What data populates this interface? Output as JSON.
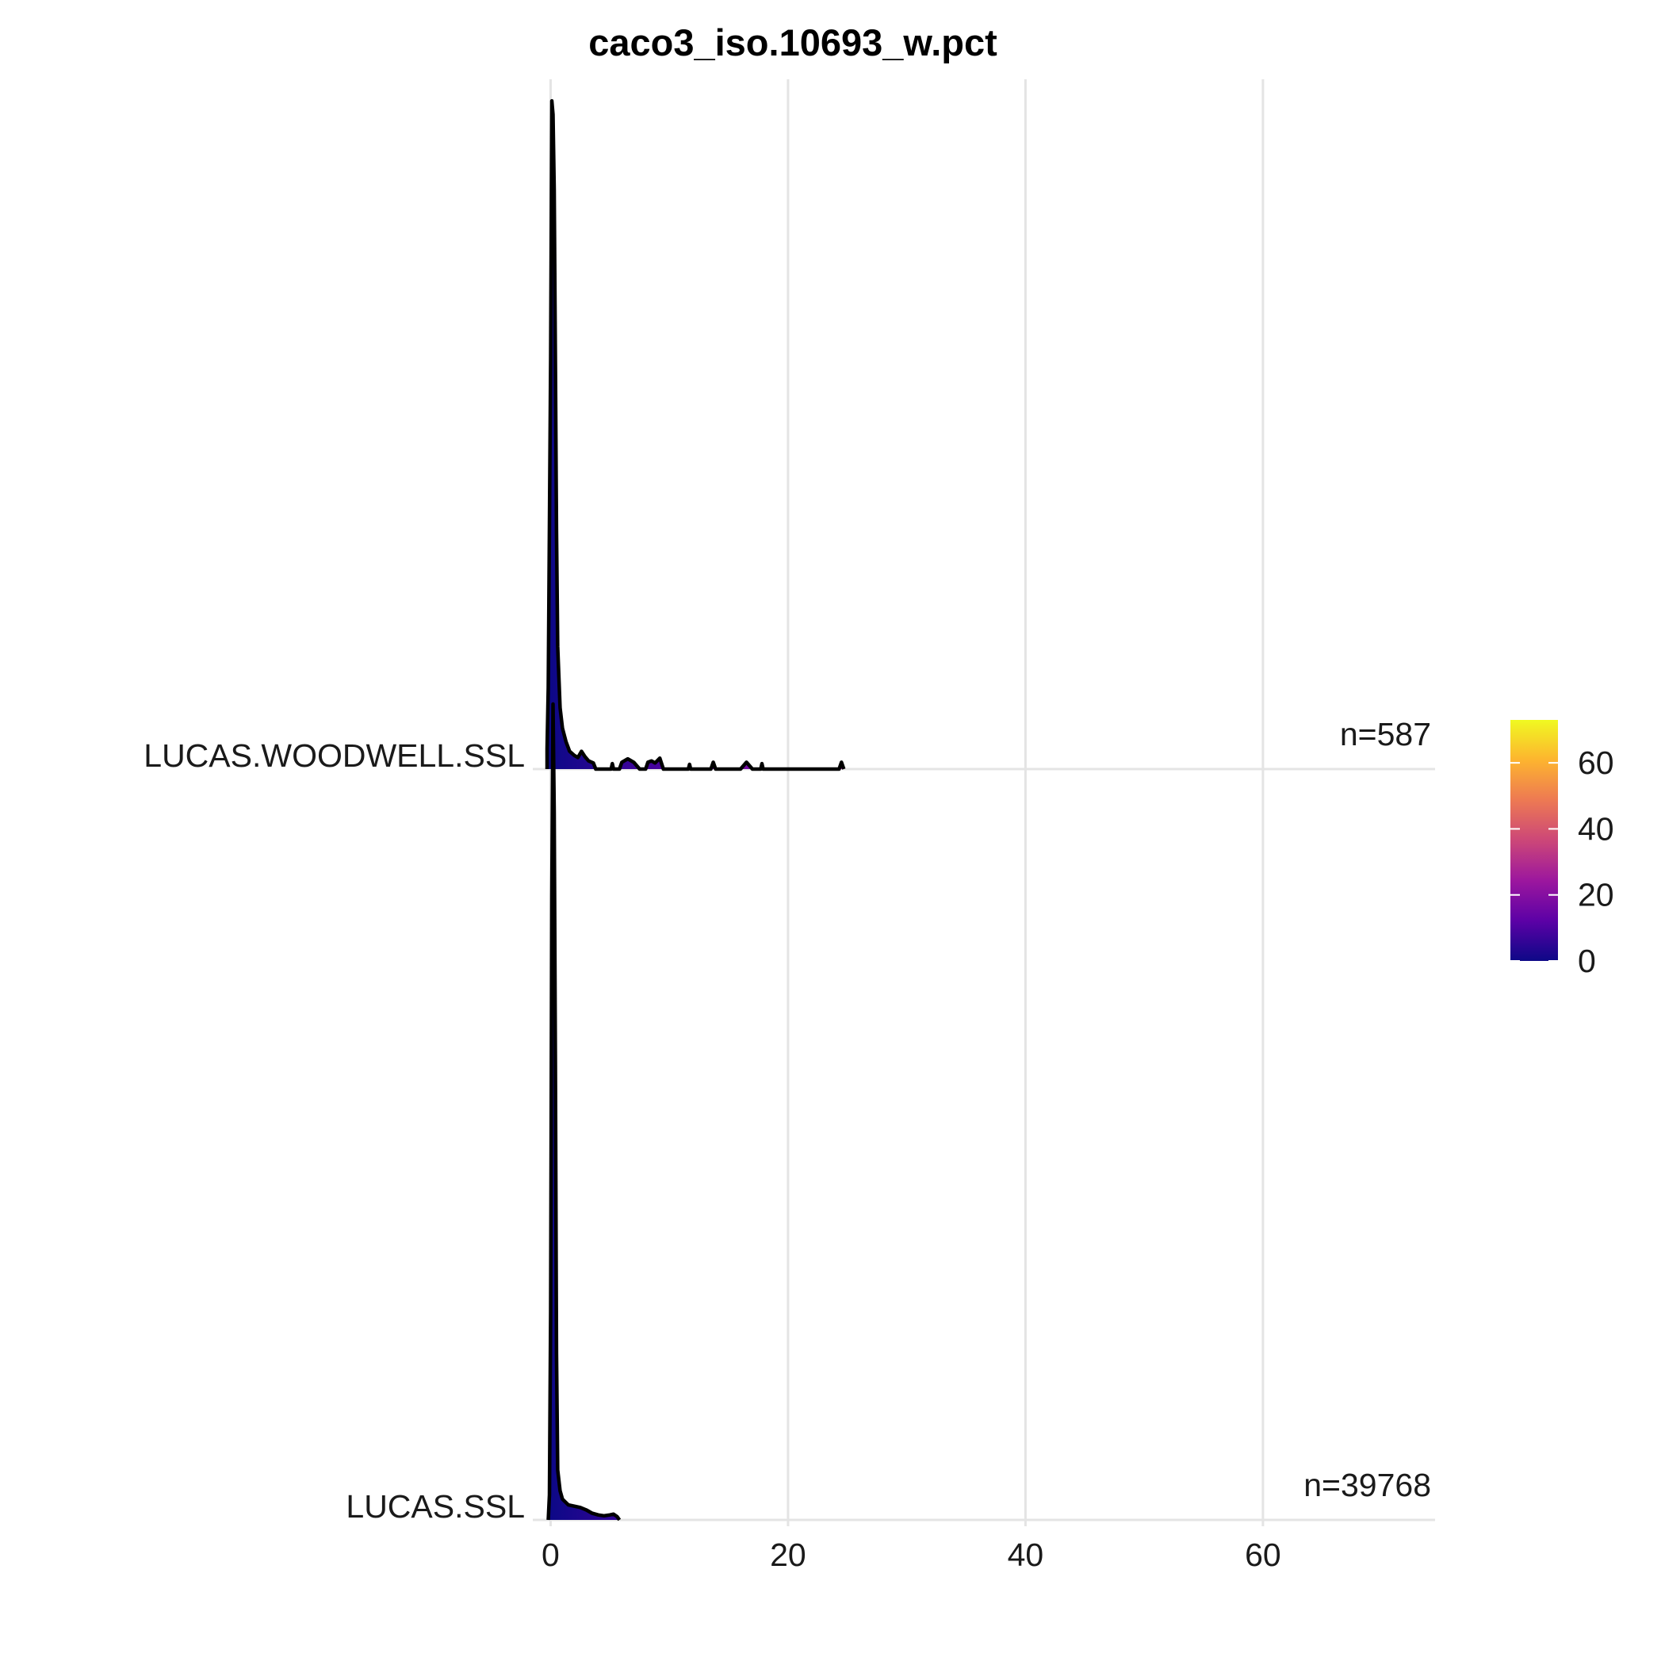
{
  "chart_data": {
    "type": "ridgeline",
    "title": "caco3_iso.10693_w.pct",
    "xlabel": "",
    "ylabel": "",
    "xlim": [
      -1.5,
      74.5
    ],
    "x_ticks": [
      "0",
      "20",
      "40",
      "60"
    ],
    "x_tick_values": [
      0,
      20,
      40,
      60
    ],
    "grid": "vertical major lines",
    "series": [
      {
        "name": "LUCAS.SSL",
        "count_label": "n=39768",
        "density": [
          [
            -0.2,
            0.0
          ],
          [
            -0.1,
            0.03
          ],
          [
            0.0,
            0.25
          ],
          [
            0.1,
            0.75
          ],
          [
            0.2,
            0.98
          ],
          [
            0.3,
            0.85
          ],
          [
            0.4,
            0.55
          ],
          [
            0.5,
            0.2
          ],
          [
            0.6,
            0.06
          ],
          [
            0.8,
            0.035
          ],
          [
            1.0,
            0.025
          ],
          [
            1.5,
            0.018
          ],
          [
            2.5,
            0.015
          ],
          [
            3.0,
            0.012
          ],
          [
            3.5,
            0.008
          ],
          [
            4.0,
            0.006
          ],
          [
            4.5,
            0.005
          ],
          [
            5.0,
            0.006
          ],
          [
            5.3,
            0.007
          ],
          [
            5.6,
            0.004
          ],
          [
            5.8,
            0.0
          ]
        ]
      },
      {
        "name": "LUCAS.WOODWELL.SSL",
        "count_label": "n=587",
        "density": [
          [
            -0.3,
            0.0
          ],
          [
            -0.3,
            0.03
          ],
          [
            -0.2,
            0.12
          ],
          [
            0.0,
            0.6
          ],
          [
            0.1,
            0.98
          ],
          [
            0.2,
            0.96
          ],
          [
            0.3,
            0.85
          ],
          [
            0.4,
            0.6
          ],
          [
            0.5,
            0.35
          ],
          [
            0.6,
            0.18
          ],
          [
            0.8,
            0.09
          ],
          [
            1.0,
            0.06
          ],
          [
            1.3,
            0.04
          ],
          [
            1.6,
            0.026
          ],
          [
            2.0,
            0.02
          ],
          [
            2.3,
            0.017
          ],
          [
            2.6,
            0.026
          ],
          [
            2.9,
            0.018
          ],
          [
            3.2,
            0.012
          ],
          [
            3.6,
            0.009
          ],
          [
            3.8,
            0.0
          ],
          [
            5.1,
            0.0
          ],
          [
            5.2,
            0.008
          ],
          [
            5.3,
            0.0
          ],
          [
            5.8,
            0.0
          ],
          [
            6.0,
            0.01
          ],
          [
            6.5,
            0.015
          ],
          [
            7.0,
            0.01
          ],
          [
            7.5,
            0.0
          ],
          [
            8.0,
            0.0
          ],
          [
            8.2,
            0.01
          ],
          [
            8.5,
            0.012
          ],
          [
            8.8,
            0.009
          ],
          [
            9.2,
            0.016
          ],
          [
            9.5,
            0.0
          ],
          [
            11.6,
            0.0
          ],
          [
            11.7,
            0.007
          ],
          [
            11.8,
            0.0
          ],
          [
            13.5,
            0.0
          ],
          [
            13.7,
            0.01
          ],
          [
            13.9,
            0.0
          ],
          [
            16.0,
            0.0
          ],
          [
            16.5,
            0.01
          ],
          [
            17.0,
            0.0
          ],
          [
            17.7,
            0.0
          ],
          [
            17.8,
            0.008
          ],
          [
            17.9,
            0.0
          ],
          [
            24.3,
            0.0
          ],
          [
            24.5,
            0.01
          ],
          [
            24.7,
            0.0
          ]
        ]
      }
    ],
    "colorbar": {
      "palette": "plasma",
      "range": [
        0,
        73
      ],
      "ticks": [
        "0",
        "20",
        "40",
        "60"
      ],
      "tick_values": [
        0,
        20,
        40,
        60
      ],
      "colors": [
        "#0d0887",
        "#5c01a6",
        "#9c179e",
        "#cc4778",
        "#ed7953",
        "#fdb42f",
        "#f0f921"
      ]
    },
    "outline_color": "#000000",
    "grid_color": "#e4e4e4"
  }
}
